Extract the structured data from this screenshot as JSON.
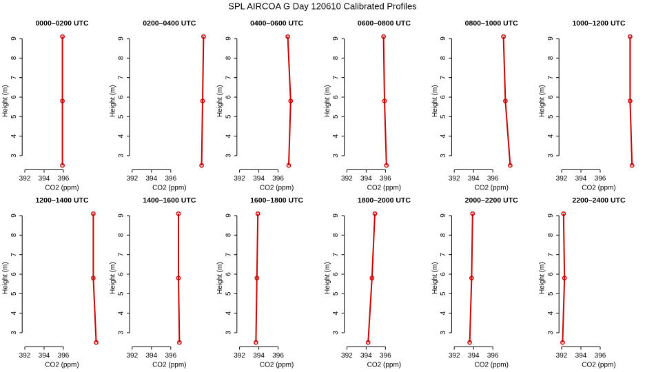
{
  "title": "SPL AIRCOA G  Day 120610  Calibrated Profiles",
  "chart_data": [
    {
      "type": "line",
      "title": "0000–0200 UTC",
      "xlabel": "CO2 (ppm)",
      "ylabel": "Height (m)",
      "x": [
        395.9,
        395.9,
        395.9
      ],
      "values": [
        2.5,
        5.8,
        9.1
      ],
      "color": "#cc0000",
      "xlim": [
        391.8,
        399.6
      ],
      "ylim": [
        2.24,
        9.36
      ],
      "xticks": [
        392,
        394,
        396
      ],
      "yticks": [
        3,
        4,
        5,
        6,
        7,
        8,
        9
      ]
    },
    {
      "type": "line",
      "title": "0200–0400 UTC",
      "xlabel": "CO2 (ppm)",
      "ylabel": "Height (m)",
      "x": [
        399.2,
        399.3,
        399.4
      ],
      "values": [
        2.5,
        5.8,
        9.1
      ],
      "color": "#cc0000",
      "xlim": [
        391.8,
        399.6
      ],
      "ylim": [
        2.24,
        9.36
      ],
      "xticks": [
        392,
        394,
        396
      ],
      "yticks": [
        3,
        4,
        5,
        6,
        7,
        8,
        9
      ]
    },
    {
      "type": "line",
      "title": "0400–0600 UTC",
      "xlabel": "CO2 (ppm)",
      "ylabel": "Height (m)",
      "x": [
        397.1,
        397.3,
        397.0
      ],
      "values": [
        2.5,
        5.8,
        9.1
      ],
      "color": "#cc0000",
      "xlim": [
        391.8,
        399.6
      ],
      "ylim": [
        2.24,
        9.36
      ],
      "xticks": [
        392,
        394,
        396
      ],
      "yticks": [
        3,
        4,
        5,
        6,
        7,
        8,
        9
      ]
    },
    {
      "type": "line",
      "title": "0600–0800 UTC",
      "xlabel": "CO2 (ppm)",
      "ylabel": "Height (m)",
      "x": [
        396.1,
        395.9,
        395.8
      ],
      "values": [
        2.5,
        5.8,
        9.1
      ],
      "color": "#cc0000",
      "xlim": [
        391.8,
        399.6
      ],
      "ylim": [
        2.24,
        9.36
      ],
      "xticks": [
        392,
        394,
        396
      ],
      "yticks": [
        3,
        4,
        5,
        6,
        7,
        8,
        9
      ]
    },
    {
      "type": "line",
      "title": "0800–1000 UTC",
      "xlabel": "CO2 (ppm)",
      "ylabel": "Height (m)",
      "x": [
        397.8,
        397.3,
        397.1
      ],
      "values": [
        2.5,
        5.8,
        9.1
      ],
      "color": "#cc0000",
      "xlim": [
        391.8,
        399.6
      ],
      "ylim": [
        2.24,
        9.36
      ],
      "xticks": [
        392,
        394,
        396
      ],
      "yticks": [
        3,
        4,
        5,
        6,
        7,
        8,
        9
      ]
    },
    {
      "type": "line",
      "title": "1000–1200 UTC",
      "xlabel": "CO2 (ppm)",
      "ylabel": "Height (m)",
      "x": [
        399.3,
        399.1,
        399.1
      ],
      "values": [
        2.5,
        5.8,
        9.1
      ],
      "color": "#cc0000",
      "xlim": [
        391.8,
        399.6
      ],
      "ylim": [
        2.24,
        9.36
      ],
      "xticks": [
        392,
        394,
        396
      ],
      "yticks": [
        3,
        4,
        5,
        6,
        7,
        8,
        9
      ]
    },
    {
      "type": "line",
      "title": "1200–1400 UTC",
      "xlabel": "CO2 (ppm)",
      "ylabel": "Height (m)",
      "x": [
        399.4,
        399.1,
        399.1
      ],
      "values": [
        2.5,
        5.8,
        9.1
      ],
      "color": "#cc0000",
      "xlim": [
        391.8,
        399.6
      ],
      "ylim": [
        2.24,
        9.36
      ],
      "xticks": [
        392,
        394,
        396
      ],
      "yticks": [
        3,
        4,
        5,
        6,
        7,
        8,
        9
      ]
    },
    {
      "type": "line",
      "title": "1400–1600 UTC",
      "xlabel": "CO2 (ppm)",
      "ylabel": "Height (m)",
      "x": [
        396.9,
        396.8,
        396.8
      ],
      "values": [
        2.5,
        5.8,
        9.1
      ],
      "color": "#cc0000",
      "xlim": [
        391.8,
        399.6
      ],
      "ylim": [
        2.24,
        9.36
      ],
      "xticks": [
        392,
        394,
        396
      ],
      "yticks": [
        3,
        4,
        5,
        6,
        7,
        8,
        9
      ]
    },
    {
      "type": "line",
      "title": "1600–1800 UTC",
      "xlabel": "CO2 (ppm)",
      "ylabel": "Height (m)",
      "x": [
        393.7,
        393.8,
        393.9
      ],
      "values": [
        2.5,
        5.8,
        9.1
      ],
      "color": "#cc0000",
      "xlim": [
        391.8,
        399.6
      ],
      "ylim": [
        2.24,
        9.36
      ],
      "xticks": [
        392,
        394,
        396
      ],
      "yticks": [
        3,
        4,
        5,
        6,
        7,
        8,
        9
      ]
    },
    {
      "type": "line",
      "title": "1800–2000 UTC",
      "xlabel": "CO2 (ppm)",
      "ylabel": "Height (m)",
      "x": [
        394.2,
        394.6,
        394.9
      ],
      "values": [
        2.5,
        5.8,
        9.1
      ],
      "color": "#cc0000",
      "xlim": [
        391.8,
        399.6
      ],
      "ylim": [
        2.24,
        9.36
      ],
      "xticks": [
        392,
        394,
        396
      ],
      "yticks": [
        3,
        4,
        5,
        6,
        7,
        8,
        9
      ]
    },
    {
      "type": "line",
      "title": "2000–2200 UTC",
      "xlabel": "CO2 (ppm)",
      "ylabel": "Height (m)",
      "x": [
        393.6,
        393.8,
        393.9
      ],
      "values": [
        2.5,
        5.8,
        9.1
      ],
      "color": "#cc0000",
      "xlim": [
        391.8,
        399.6
      ],
      "ylim": [
        2.24,
        9.36
      ],
      "xticks": [
        392,
        394,
        396
      ],
      "yticks": [
        3,
        4,
        5,
        6,
        7,
        8,
        9
      ]
    },
    {
      "type": "line",
      "title": "2200–2400 UTC",
      "xlabel": "CO2 (ppm)",
      "ylabel": "Height (m)",
      "x": [
        392.1,
        392.3,
        392.2
      ],
      "values": [
        2.5,
        5.8,
        9.1
      ],
      "color": "#cc0000",
      "xlim": [
        391.8,
        399.6
      ],
      "ylim": [
        2.24,
        9.36
      ],
      "xticks": [
        392,
        394,
        396
      ],
      "yticks": [
        3,
        4,
        5,
        6,
        7,
        8,
        9
      ]
    }
  ]
}
